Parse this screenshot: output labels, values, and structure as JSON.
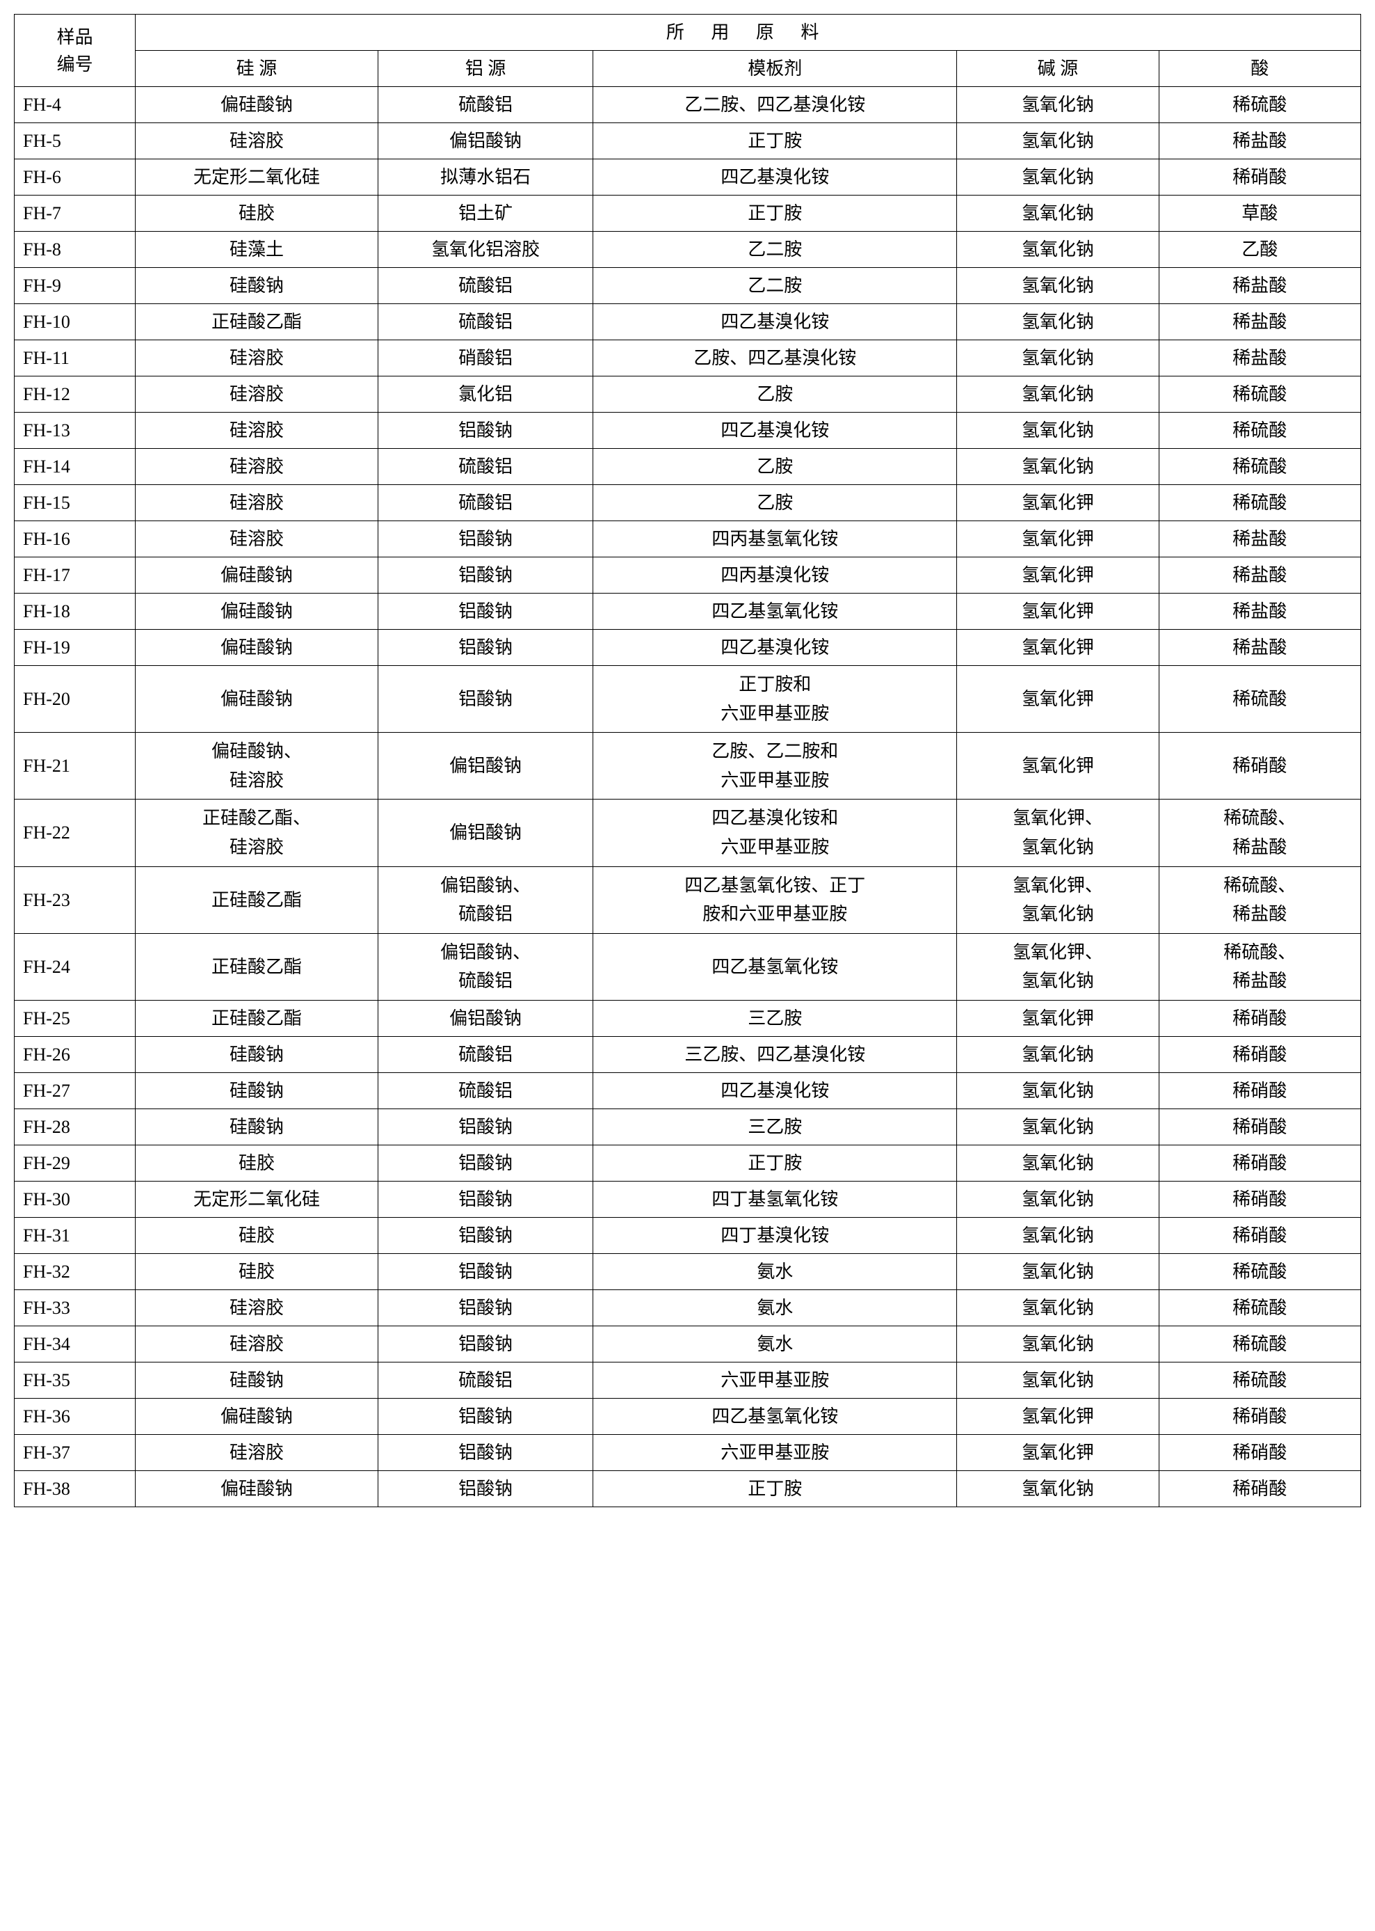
{
  "headers": {
    "sample_id": "样品\n编号",
    "materials": "所  用  原  料",
    "si_source": "硅 源",
    "al_source": "铝 源",
    "template": "模板剂",
    "base_source": "碱 源",
    "acid": "酸"
  },
  "rows": [
    {
      "id": "FH-4",
      "si": "偏硅酸钠",
      "al": "硫酸铝",
      "template": "乙二胺、四乙基溴化铵",
      "base": "氢氧化钠",
      "acid": "稀硫酸"
    },
    {
      "id": "FH-5",
      "si": "硅溶胶",
      "al": "偏铝酸钠",
      "template": "正丁胺",
      "base": "氢氧化钠",
      "acid": "稀盐酸"
    },
    {
      "id": "FH-6",
      "si": "无定形二氧化硅",
      "al": "拟薄水铝石",
      "template": "四乙基溴化铵",
      "base": "氢氧化钠",
      "acid": "稀硝酸"
    },
    {
      "id": "FH-7",
      "si": "硅胶",
      "al": "铝土矿",
      "template": "正丁胺",
      "base": "氢氧化钠",
      "acid": "草酸"
    },
    {
      "id": "FH-8",
      "si": "硅藻土",
      "al": "氢氧化铝溶胶",
      "template": "乙二胺",
      "base": "氢氧化钠",
      "acid": "乙酸"
    },
    {
      "id": "FH-9",
      "si": "硅酸钠",
      "al": "硫酸铝",
      "template": "乙二胺",
      "base": "氢氧化钠",
      "acid": "稀盐酸"
    },
    {
      "id": "FH-10",
      "si": "正硅酸乙酯",
      "al": "硫酸铝",
      "template": "四乙基溴化铵",
      "base": "氢氧化钠",
      "acid": "稀盐酸"
    },
    {
      "id": "FH-11",
      "si": "硅溶胶",
      "al": "硝酸铝",
      "template": "乙胺、四乙基溴化铵",
      "base": "氢氧化钠",
      "acid": "稀盐酸"
    },
    {
      "id": "FH-12",
      "si": "硅溶胶",
      "al": "氯化铝",
      "template": "乙胺",
      "base": "氢氧化钠",
      "acid": "稀硫酸"
    },
    {
      "id": "FH-13",
      "si": "硅溶胶",
      "al": "铝酸钠",
      "template": "四乙基溴化铵",
      "base": "氢氧化钠",
      "acid": "稀硫酸"
    },
    {
      "id": "FH-14",
      "si": "硅溶胶",
      "al": "硫酸铝",
      "template": "乙胺",
      "base": "氢氧化钠",
      "acid": "稀硫酸"
    },
    {
      "id": "FH-15",
      "si": "硅溶胶",
      "al": "硫酸铝",
      "template": "乙胺",
      "base": "氢氧化钾",
      "acid": "稀硫酸"
    },
    {
      "id": "FH-16",
      "si": "硅溶胶",
      "al": "铝酸钠",
      "template": "四丙基氢氧化铵",
      "base": "氢氧化钾",
      "acid": "稀盐酸"
    },
    {
      "id": "FH-17",
      "si": "偏硅酸钠",
      "al": "铝酸钠",
      "template": "四丙基溴化铵",
      "base": "氢氧化钾",
      "acid": "稀盐酸"
    },
    {
      "id": "FH-18",
      "si": "偏硅酸钠",
      "al": "铝酸钠",
      "template": "四乙基氢氧化铵",
      "base": "氢氧化钾",
      "acid": "稀盐酸"
    },
    {
      "id": "FH-19",
      "si": "偏硅酸钠",
      "al": "铝酸钠",
      "template": "四乙基溴化铵",
      "base": "氢氧化钾",
      "acid": "稀盐酸"
    },
    {
      "id": "FH-20",
      "si": "偏硅酸钠",
      "al": "铝酸钠",
      "template": "正丁胺和\n六亚甲基亚胺",
      "base": "氢氧化钾",
      "acid": "稀硫酸"
    },
    {
      "id": "FH-21",
      "si": "偏硅酸钠、\n硅溶胶",
      "al": "偏铝酸钠",
      "template": "乙胺、乙二胺和\n六亚甲基亚胺",
      "base": "氢氧化钾",
      "acid": "稀硝酸"
    },
    {
      "id": "FH-22",
      "si": "正硅酸乙酯、\n硅溶胶",
      "al": "偏铝酸钠",
      "template": "四乙基溴化铵和\n六亚甲基亚胺",
      "base": "氢氧化钾、\n氢氧化钠",
      "acid": "稀硫酸、\n稀盐酸"
    },
    {
      "id": "FH-23",
      "si": "正硅酸乙酯",
      "al": "偏铝酸钠、\n硫酸铝",
      "template": "四乙基氢氧化铵、正丁\n胺和六亚甲基亚胺",
      "base": "氢氧化钾、\n氢氧化钠",
      "acid": "稀硫酸、\n稀盐酸"
    },
    {
      "id": "FH-24",
      "si": "正硅酸乙酯",
      "al": "偏铝酸钠、\n硫酸铝",
      "template": "四乙基氢氧化铵",
      "base": "氢氧化钾、\n氢氧化钠",
      "acid": "稀硫酸、\n稀盐酸"
    },
    {
      "id": "FH-25",
      "si": "正硅酸乙酯",
      "al": "偏铝酸钠",
      "template": "三乙胺",
      "base": "氢氧化钾",
      "acid": "稀硝酸"
    },
    {
      "id": "FH-26",
      "si": "硅酸钠",
      "al": "硫酸铝",
      "template": "三乙胺、四乙基溴化铵",
      "base": "氢氧化钠",
      "acid": "稀硝酸"
    },
    {
      "id": "FH-27",
      "si": "硅酸钠",
      "al": "硫酸铝",
      "template": "四乙基溴化铵",
      "base": "氢氧化钠",
      "acid": "稀硝酸"
    },
    {
      "id": "FH-28",
      "si": "硅酸钠",
      "al": "铝酸钠",
      "template": "三乙胺",
      "base": "氢氧化钠",
      "acid": "稀硝酸"
    },
    {
      "id": "FH-29",
      "si": "硅胶",
      "al": "铝酸钠",
      "template": "正丁胺",
      "base": "氢氧化钠",
      "acid": "稀硝酸"
    },
    {
      "id": "FH-30",
      "si": "无定形二氧化硅",
      "al": "铝酸钠",
      "template": "四丁基氢氧化铵",
      "base": "氢氧化钠",
      "acid": "稀硝酸"
    },
    {
      "id": "FH-31",
      "si": "硅胶",
      "al": "铝酸钠",
      "template": "四丁基溴化铵",
      "base": "氢氧化钠",
      "acid": "稀硝酸"
    },
    {
      "id": "FH-32",
      "si": "硅胶",
      "al": "铝酸钠",
      "template": "氨水",
      "base": "氢氧化钠",
      "acid": "稀硫酸"
    },
    {
      "id": "FH-33",
      "si": "硅溶胶",
      "al": "铝酸钠",
      "template": "氨水",
      "base": "氢氧化钠",
      "acid": "稀硫酸"
    },
    {
      "id": "FH-34",
      "si": "硅溶胶",
      "al": "铝酸钠",
      "template": "氨水",
      "base": "氢氧化钠",
      "acid": "稀硫酸"
    },
    {
      "id": "FH-35",
      "si": "硅酸钠",
      "al": "硫酸铝",
      "template": "六亚甲基亚胺",
      "base": "氢氧化钠",
      "acid": "稀硫酸"
    },
    {
      "id": "FH-36",
      "si": "偏硅酸钠",
      "al": "铝酸钠",
      "template": "四乙基氢氧化铵",
      "base": "氢氧化钾",
      "acid": "稀硝酸"
    },
    {
      "id": "FH-37",
      "si": "硅溶胶",
      "al": "铝酸钠",
      "template": "六亚甲基亚胺",
      "base": "氢氧化钾",
      "acid": "稀硝酸"
    },
    {
      "id": "FH-38",
      "si": "偏硅酸钠",
      "al": "铝酸钠",
      "template": "正丁胺",
      "base": "氢氧化钠",
      "acid": "稀硝酸"
    }
  ],
  "style": {
    "font_family": "SimSun",
    "font_size": 26,
    "border_color": "#000000",
    "border_width": 1.5,
    "background_color": "#ffffff",
    "text_color": "#000000"
  }
}
